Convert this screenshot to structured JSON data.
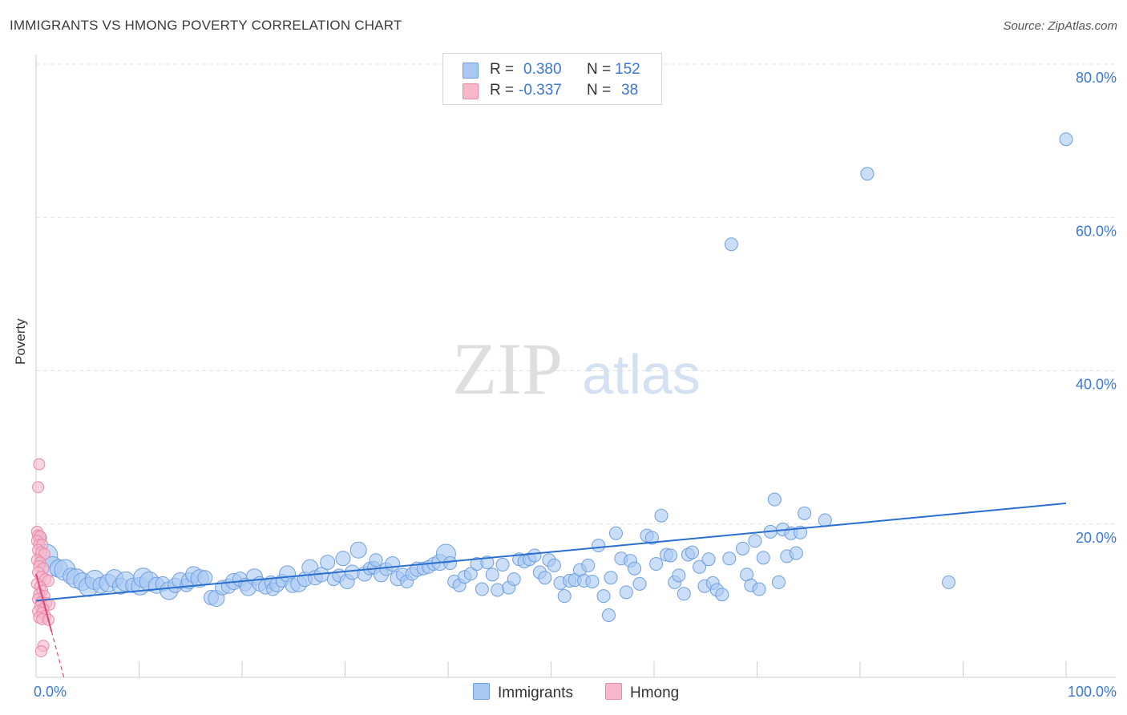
{
  "title": "IMMIGRANTS VS HMONG POVERTY CORRELATION CHART",
  "source": "Source: ZipAtlas.com",
  "legend": {
    "rows": [
      {
        "r_label": "R =",
        "r_value": "0.380",
        "n_label": "N =",
        "n_value": "152",
        "color": "#aac8f0"
      },
      {
        "r_label": "R =",
        "r_value": "-0.337",
        "n_label": "N =",
        "n_value": "38",
        "color": "#f7b8c9"
      }
    ]
  },
  "bottom_legend": {
    "immigrants": "Immigrants",
    "hmong": "Hmong"
  },
  "colors": {
    "immigrants_fill": "#a9c8f2",
    "immigrants_stroke": "#6f9fe0",
    "immigrants_line": "#2a6fd0",
    "hmong_fill": "#f7b8cc",
    "hmong_stroke": "#e88aa8",
    "hmong_line": "#e0467a",
    "grid": "#e2e2e2",
    "tick_label": "#3b78d1"
  },
  "chart_data": {
    "type": "scatter",
    "title": "IMMIGRANTS VS HMONG POVERTY CORRELATION CHART",
    "xlabel": "",
    "ylabel": "Poverty",
    "xlim": [
      0,
      100
    ],
    "ylim": [
      0,
      80
    ],
    "x_tick_labels": [
      "0.0%",
      "100.0%"
    ],
    "y_tick_labels": [
      "20.0%",
      "40.0%",
      "60.0%",
      "80.0%"
    ],
    "watermark": {
      "zip": "ZIP",
      "atlas": "atlas"
    },
    "series": [
      {
        "name": "Immigrants",
        "r": 0.38,
        "n": 152,
        "trend": {
          "x": [
            0,
            100
          ],
          "y": [
            10.0,
            22.7
          ]
        },
        "points": [
          [
            0.4,
            18.2,
            8
          ],
          [
            1.0,
            15.9,
            14
          ],
          [
            1.6,
            14.5,
            12
          ],
          [
            2.2,
            14.2,
            11
          ],
          [
            2.8,
            14.0,
            13
          ],
          [
            3.4,
            13.2,
            10
          ],
          [
            3.9,
            12.9,
            12
          ],
          [
            4.5,
            12.5,
            11
          ],
          [
            5.1,
            11.8,
            12
          ],
          [
            5.7,
            12.7,
            12
          ],
          [
            6.3,
            12.0,
            10
          ],
          [
            7.0,
            12.3,
            11
          ],
          [
            7.6,
            12.9,
            11
          ],
          [
            8.2,
            11.9,
            10
          ],
          [
            8.7,
            12.5,
            12
          ],
          [
            9.4,
            12.0,
            9
          ],
          [
            10.1,
            11.9,
            11
          ],
          [
            10.4,
            13.0,
            12
          ],
          [
            11.0,
            12.5,
            12
          ],
          [
            11.7,
            12.0,
            10
          ],
          [
            12.3,
            12.2,
            9
          ],
          [
            12.9,
            11.3,
            11
          ],
          [
            13.5,
            12.0,
            9
          ],
          [
            14.0,
            12.6,
            10
          ],
          [
            14.6,
            12.0,
            8
          ],
          [
            14.9,
            12.6,
            10
          ],
          [
            15.3,
            13.4,
            10
          ],
          [
            15.9,
            12.9,
            11
          ],
          [
            16.4,
            13.0,
            9
          ],
          [
            17.0,
            10.4,
            9
          ],
          [
            17.5,
            10.3,
            10
          ],
          [
            18.1,
            11.7,
            9
          ],
          [
            18.7,
            11.9,
            9
          ],
          [
            19.2,
            12.5,
            10
          ],
          [
            19.8,
            12.8,
            9
          ],
          [
            20.3,
            12.1,
            8
          ],
          [
            20.6,
            11.7,
            10
          ],
          [
            21.2,
            13.1,
            10
          ],
          [
            21.7,
            12.2,
            9
          ],
          [
            22.3,
            11.8,
            9
          ],
          [
            22.8,
            12.4,
            8
          ],
          [
            23.0,
            11.5,
            8
          ],
          [
            23.4,
            12.1,
            9
          ],
          [
            23.9,
            12.6,
            8
          ],
          [
            24.4,
            13.5,
            10
          ],
          [
            24.9,
            12.0,
            9
          ],
          [
            25.5,
            12.2,
            10
          ],
          [
            26.1,
            12.8,
            9
          ],
          [
            26.6,
            14.3,
            10
          ],
          [
            27.1,
            13.0,
            9
          ],
          [
            27.7,
            13.4,
            9
          ],
          [
            28.3,
            15.0,
            9
          ],
          [
            28.9,
            12.8,
            8
          ],
          [
            29.4,
            13.3,
            8
          ],
          [
            29.8,
            15.5,
            9
          ],
          [
            30.2,
            12.5,
            9
          ],
          [
            30.7,
            13.7,
            9
          ],
          [
            31.3,
            16.6,
            10
          ],
          [
            31.9,
            13.5,
            9
          ],
          [
            32.4,
            14.2,
            8
          ],
          [
            32.8,
            14.3,
            8
          ],
          [
            33.0,
            15.3,
            8
          ],
          [
            33.5,
            13.4,
            9
          ],
          [
            34.0,
            14.1,
            8
          ],
          [
            34.6,
            14.8,
            9
          ],
          [
            35.1,
            12.9,
            9
          ],
          [
            35.6,
            13.4,
            8
          ],
          [
            36.0,
            12.5,
            8
          ],
          [
            36.5,
            13.5,
            8
          ],
          [
            37.0,
            14.1,
            9
          ],
          [
            37.6,
            14.2,
            8
          ],
          [
            38.1,
            14.4,
            8
          ],
          [
            38.6,
            14.8,
            8
          ],
          [
            39.2,
            15.0,
            10
          ],
          [
            39.8,
            16.1,
            12
          ],
          [
            40.2,
            14.9,
            8
          ],
          [
            40.6,
            12.5,
            8
          ],
          [
            41.1,
            12.0,
            8
          ],
          [
            41.6,
            13.1,
            8
          ],
          [
            42.2,
            13.5,
            8
          ],
          [
            42.8,
            14.8,
            8
          ],
          [
            43.3,
            11.5,
            8
          ],
          [
            43.8,
            15.0,
            8
          ],
          [
            44.3,
            13.4,
            8
          ],
          [
            44.8,
            11.4,
            8
          ],
          [
            45.3,
            14.7,
            8
          ],
          [
            45.9,
            11.7,
            8
          ],
          [
            46.4,
            12.8,
            8
          ],
          [
            46.9,
            15.4,
            8
          ],
          [
            47.4,
            15.1,
            8
          ],
          [
            47.9,
            15.4,
            8
          ],
          [
            48.4,
            15.9,
            8
          ],
          [
            48.9,
            13.7,
            8
          ],
          [
            49.4,
            13.0,
            8
          ],
          [
            49.8,
            15.3,
            8
          ],
          [
            50.3,
            14.6,
            8
          ],
          [
            50.9,
            12.3,
            8
          ],
          [
            51.3,
            10.6,
            8
          ],
          [
            51.8,
            12.6,
            8
          ],
          [
            52.3,
            12.7,
            8
          ],
          [
            52.8,
            14.0,
            8
          ],
          [
            53.2,
            12.6,
            8
          ],
          [
            53.6,
            14.6,
            8
          ],
          [
            54.0,
            12.5,
            8
          ],
          [
            54.6,
            17.2,
            8
          ],
          [
            55.1,
            10.6,
            8
          ],
          [
            55.6,
            8.1,
            8
          ],
          [
            55.8,
            13.0,
            8
          ],
          [
            56.3,
            18.8,
            8
          ],
          [
            56.8,
            15.5,
            8
          ],
          [
            57.3,
            11.1,
            8
          ],
          [
            57.7,
            15.2,
            8
          ],
          [
            58.1,
            14.2,
            8
          ],
          [
            58.6,
            12.2,
            8
          ],
          [
            59.3,
            18.5,
            8
          ],
          [
            59.8,
            18.2,
            8
          ],
          [
            60.2,
            14.8,
            8
          ],
          [
            60.7,
            21.1,
            8
          ],
          [
            61.2,
            16.0,
            8
          ],
          [
            61.6,
            15.9,
            8
          ],
          [
            62.0,
            12.4,
            8
          ],
          [
            62.4,
            13.3,
            8
          ],
          [
            62.9,
            10.9,
            8
          ],
          [
            63.3,
            16.0,
            8
          ],
          [
            63.7,
            16.3,
            8
          ],
          [
            64.4,
            14.4,
            8
          ],
          [
            64.9,
            11.9,
            8
          ],
          [
            65.3,
            15.4,
            8
          ],
          [
            65.7,
            12.3,
            8
          ],
          [
            66.1,
            11.4,
            8
          ],
          [
            66.6,
            10.8,
            8
          ],
          [
            67.3,
            15.5,
            8
          ],
          [
            67.5,
            56.5,
            8
          ],
          [
            68.6,
            16.8,
            8
          ],
          [
            69.0,
            13.4,
            8
          ],
          [
            69.4,
            12.0,
            8
          ],
          [
            69.8,
            17.8,
            8
          ],
          [
            70.2,
            11.5,
            8
          ],
          [
            70.6,
            15.6,
            8
          ],
          [
            71.3,
            19.0,
            8
          ],
          [
            71.7,
            23.2,
            8
          ],
          [
            72.1,
            12.4,
            8
          ],
          [
            72.5,
            19.3,
            8
          ],
          [
            72.9,
            15.8,
            8
          ],
          [
            73.3,
            18.8,
            8
          ],
          [
            73.8,
            16.2,
            8
          ],
          [
            74.2,
            18.9,
            8
          ],
          [
            74.6,
            21.4,
            8
          ],
          [
            76.6,
            20.5,
            8
          ],
          [
            80.7,
            65.7,
            8
          ],
          [
            88.6,
            12.4,
            8
          ],
          [
            100.0,
            70.2,
            8
          ]
        ]
      },
      {
        "name": "Hmong",
        "r": -0.337,
        "n": 38,
        "trend": {
          "x": [
            0,
            2.7
          ],
          "y": [
            13.5,
            0
          ]
        },
        "trend_solid_until_x": 1.5,
        "points": [
          [
            0.3,
            27.8,
            7
          ],
          [
            0.2,
            24.8,
            7
          ],
          [
            0.1,
            19.0,
            7
          ],
          [
            0.2,
            18.5,
            7
          ],
          [
            0.4,
            18.4,
            7
          ],
          [
            0.1,
            17.8,
            7
          ],
          [
            0.3,
            17.3,
            7
          ],
          [
            0.6,
            17.3,
            7
          ],
          [
            0.2,
            16.6,
            7
          ],
          [
            0.5,
            16.3,
            7
          ],
          [
            0.8,
            16.1,
            7
          ],
          [
            0.1,
            15.3,
            7
          ],
          [
            0.4,
            15.0,
            7
          ],
          [
            0.3,
            14.5,
            7
          ],
          [
            0.7,
            14.2,
            7
          ],
          [
            0.2,
            13.7,
            7
          ],
          [
            0.5,
            13.1,
            7
          ],
          [
            0.9,
            12.8,
            7
          ],
          [
            1.2,
            12.6,
            7
          ],
          [
            0.1,
            12.2,
            7
          ],
          [
            0.4,
            11.8,
            7
          ],
          [
            0.6,
            11.3,
            7
          ],
          [
            0.3,
            10.8,
            7
          ],
          [
            0.8,
            10.6,
            7
          ],
          [
            0.2,
            10.2,
            7
          ],
          [
            0.5,
            9.8,
            7
          ],
          [
            1.0,
            9.7,
            7
          ],
          [
            1.3,
            9.5,
            7
          ],
          [
            0.4,
            9.2,
            7
          ],
          [
            0.7,
            8.9,
            7
          ],
          [
            0.2,
            8.6,
            7
          ],
          [
            0.6,
            8.4,
            7
          ],
          [
            0.9,
            8.0,
            7
          ],
          [
            0.3,
            7.8,
            7
          ],
          [
            0.6,
            7.6,
            7
          ],
          [
            1.2,
            7.5,
            7
          ],
          [
            0.7,
            4.1,
            7
          ],
          [
            0.5,
            3.4,
            7
          ]
        ]
      }
    ]
  }
}
